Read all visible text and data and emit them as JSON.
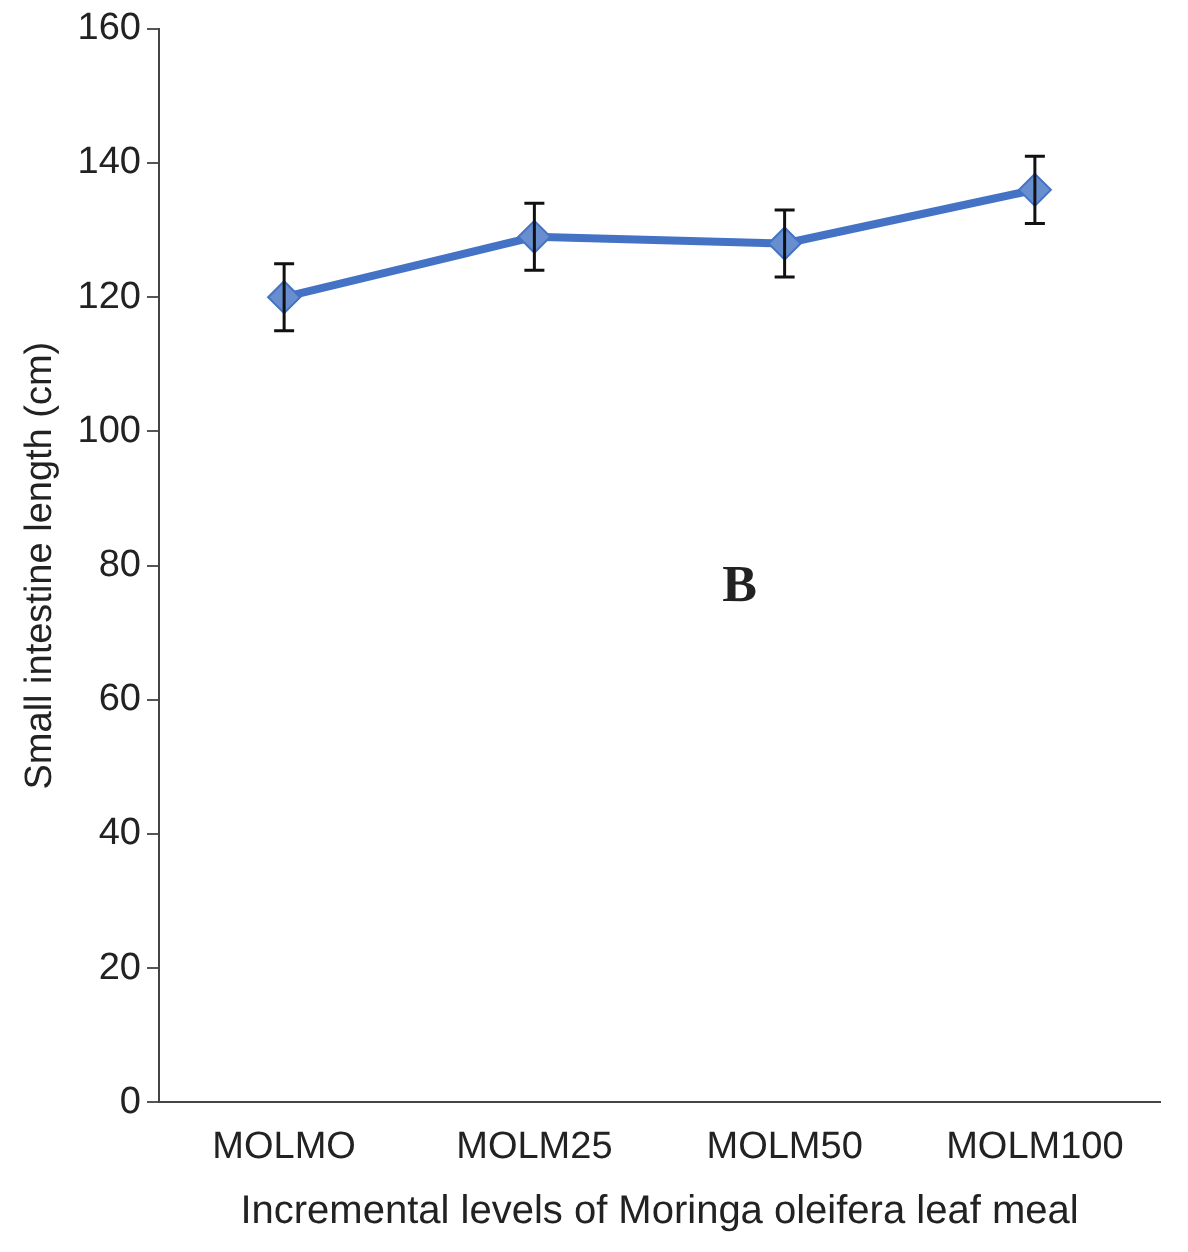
{
  "chart_data": {
    "type": "line",
    "xlabel": "Incremental levels of Moringa oleifera leaf meal",
    "ylabel": "Small intestine length (cm)",
    "categories": [
      "MOLMO",
      "MOLM25",
      "MOLM50",
      "MOLM100"
    ],
    "series": [
      {
        "color": "#4472c4",
        "values": [
          120,
          129,
          128,
          136
        ],
        "errors": [
          5,
          5,
          5,
          5
        ]
      }
    ],
    "ylim": [
      0,
      160
    ],
    "yticks": [
      0,
      20,
      40,
      60,
      80,
      100,
      120,
      140,
      160
    ],
    "grid": false,
    "legend": false,
    "marker": "diamond",
    "line_style": "solid",
    "annotations": [
      "B"
    ]
  }
}
